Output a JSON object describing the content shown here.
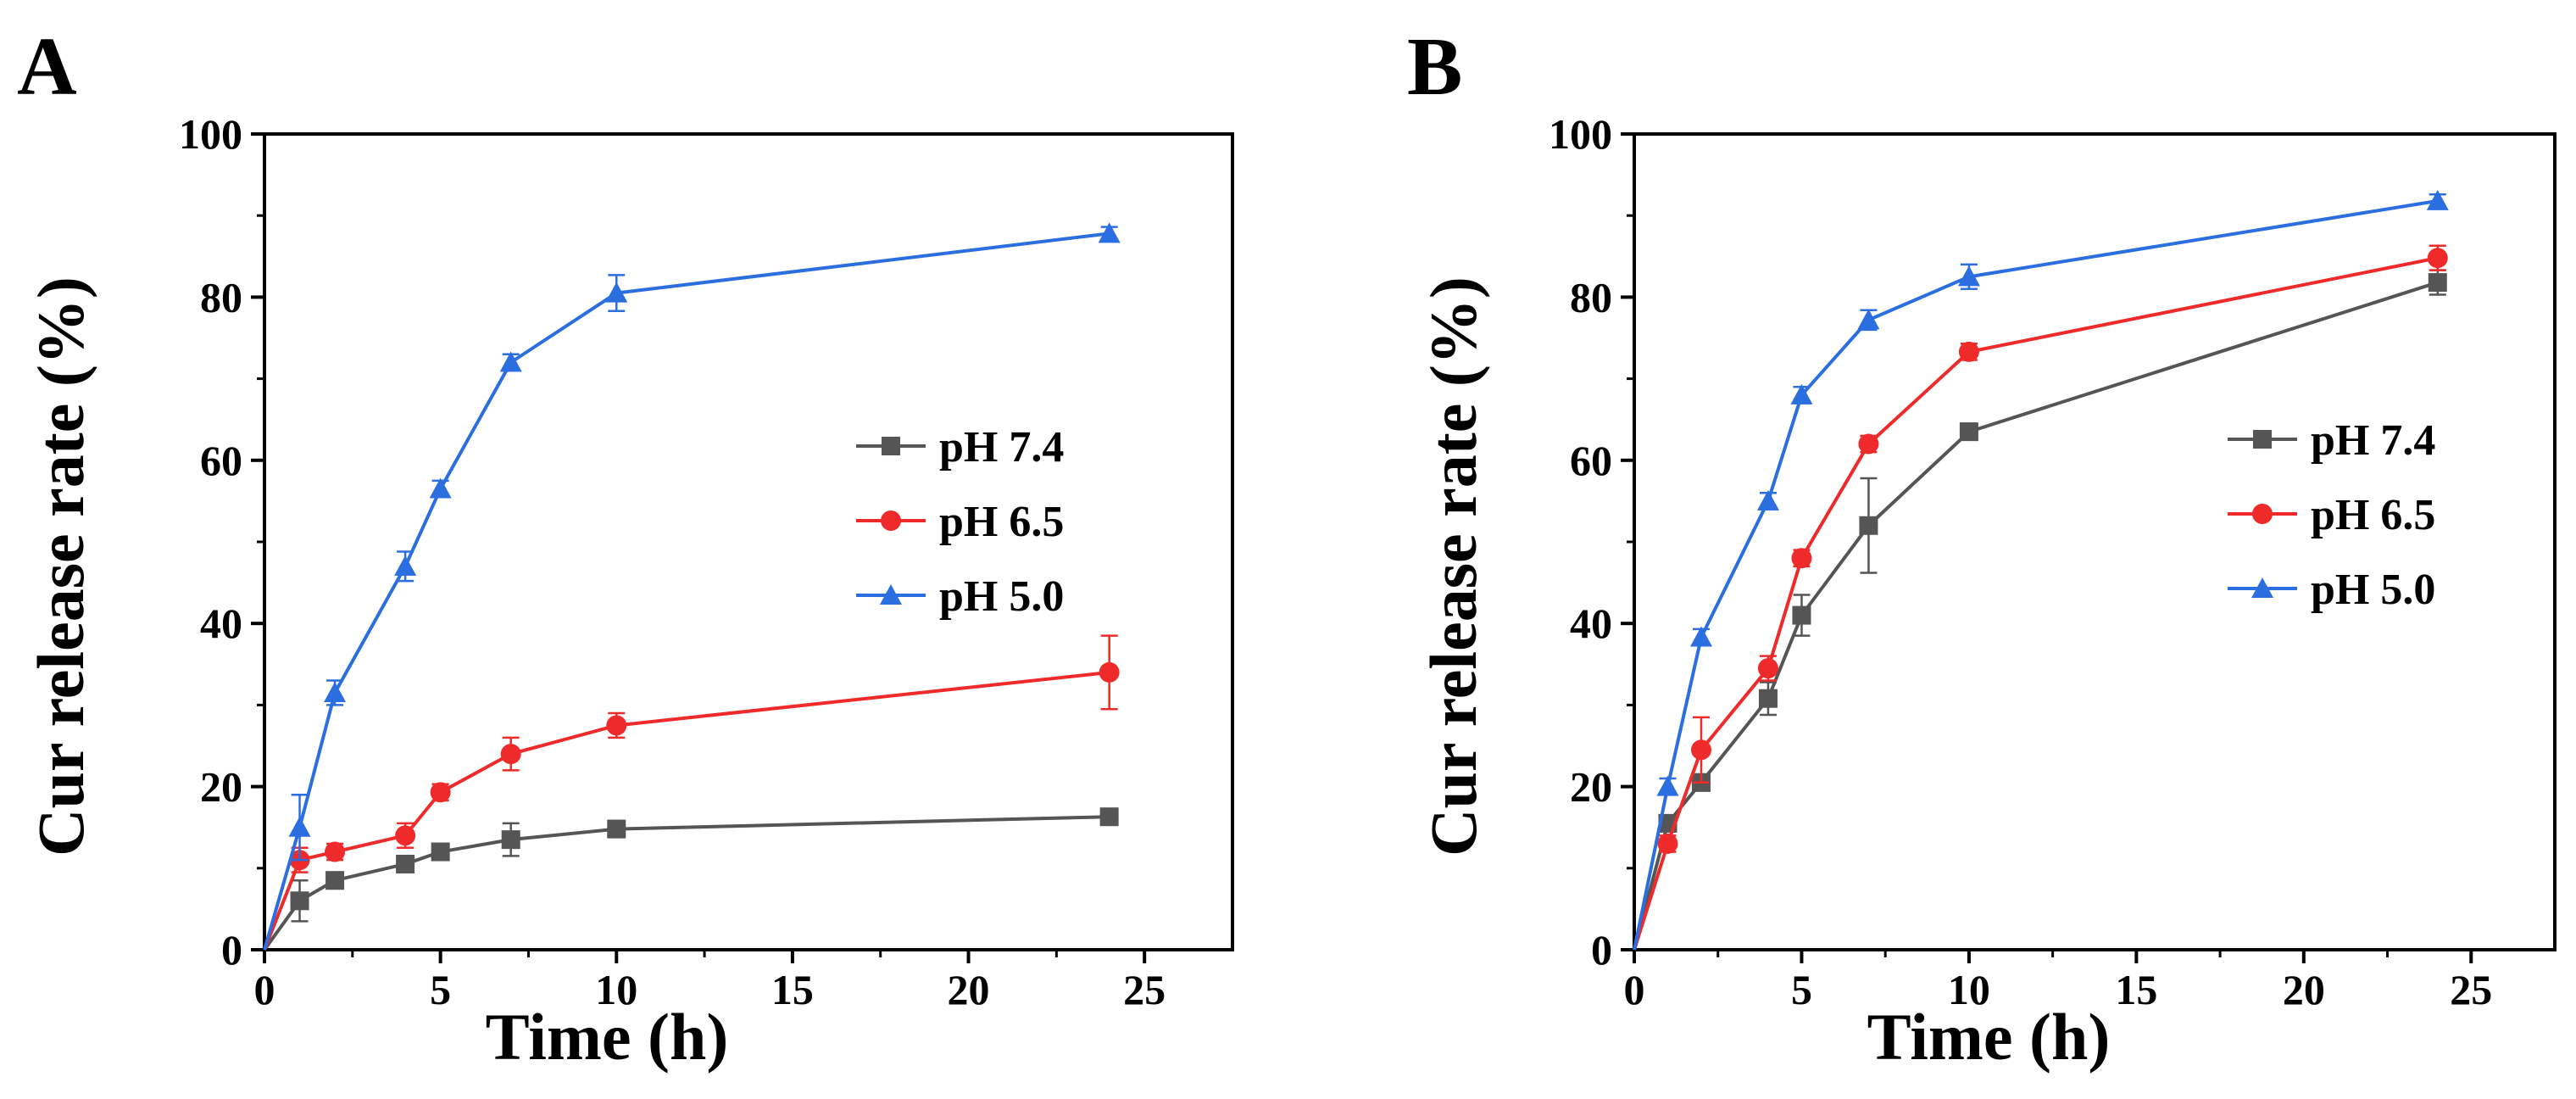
{
  "chart_data": [
    {
      "panel_label": "A",
      "type": "line",
      "xlabel": "Time (h)",
      "ylabel": "Cur release rate (%)",
      "xlim": [
        0,
        27.5
      ],
      "ylim": [
        0,
        100
      ],
      "xticks": [
        0,
        5,
        10,
        15,
        20,
        25
      ],
      "yticks": [
        0,
        20,
        40,
        60,
        80,
        100
      ],
      "grid": false,
      "legend_position": "right-middle",
      "x": [
        0,
        1,
        2,
        4,
        5,
        7,
        10,
        24
      ],
      "series": [
        {
          "name": "pH 7.4",
          "color": "#555555",
          "marker": "square",
          "values": [
            0,
            6,
            8.5,
            10.5,
            12,
            13.5,
            14.8,
            16.3
          ],
          "errors": [
            0,
            2.5,
            1,
            1,
            1,
            2,
            1,
            0.8
          ]
        },
        {
          "name": "pH 6.5",
          "color": "#ee2a2a",
          "marker": "circle",
          "values": [
            0,
            11,
            12,
            14,
            19.3,
            24,
            27.5,
            34
          ],
          "errors": [
            0,
            1.5,
            1,
            1.5,
            1,
            2,
            1.5,
            4.5
          ]
        },
        {
          "name": "pH 5.0",
          "color": "#2b6ee0",
          "marker": "triangle",
          "values": [
            0,
            15,
            31.5,
            47,
            56.5,
            72,
            80.5,
            87.8
          ],
          "errors": [
            0,
            4,
            1.5,
            1.8,
            1,
            1,
            2.2,
            0.8
          ]
        }
      ]
    },
    {
      "panel_label": "B",
      "type": "line",
      "xlabel": "Time (h)",
      "ylabel": "Cur release rate (%)",
      "xlim": [
        0,
        27.5
      ],
      "ylim": [
        0,
        100
      ],
      "xticks": [
        0,
        5,
        10,
        15,
        20,
        25
      ],
      "yticks": [
        0,
        20,
        40,
        60,
        80,
        100
      ],
      "grid": false,
      "legend_position": "right-middle",
      "x": [
        0,
        1,
        2,
        4,
        5,
        7,
        10,
        24
      ],
      "series": [
        {
          "name": "pH 7.4",
          "color": "#555555",
          "marker": "square",
          "values": [
            0,
            15.5,
            20.5,
            30.8,
            41,
            52,
            63.5,
            81.8
          ],
          "errors": [
            0,
            1,
            1,
            2,
            2.5,
            5.8,
            1,
            1.5
          ]
        },
        {
          "name": "pH 6.5",
          "color": "#ee2a2a",
          "marker": "circle",
          "values": [
            0,
            13,
            24.5,
            34.5,
            48,
            62,
            73.3,
            84.8
          ],
          "errors": [
            0,
            1,
            4,
            1.5,
            1,
            1,
            1,
            1.5
          ]
        },
        {
          "name": "pH 5.0",
          "color": "#2b6ee0",
          "marker": "triangle",
          "values": [
            0,
            20,
            38.3,
            55,
            68,
            77.2,
            82.5,
            91.8
          ],
          "errors": [
            0,
            1,
            1,
            1,
            1,
            1.2,
            1.5,
            0.8
          ]
        }
      ]
    }
  ]
}
